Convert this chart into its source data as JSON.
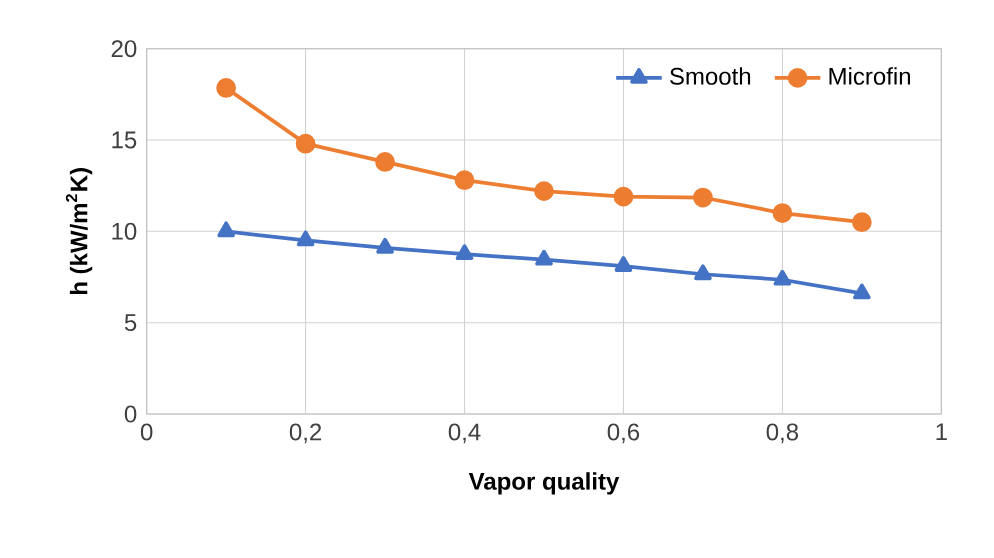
{
  "chart_data": {
    "type": "line",
    "xlabel": "Vapor quality",
    "ylabel": "h (kW/m$^{2}$K)",
    "x": [
      0.1,
      0.2,
      0.3,
      0.4,
      0.5,
      0.6,
      0.7,
      0.8,
      0.9
    ],
    "series": [
      {
        "name": "Smooth",
        "color": "#4472c4",
        "marker": "triangle",
        "values": [
          10.0,
          9.5,
          9.1,
          8.75,
          8.45,
          8.1,
          7.65,
          7.35,
          6.6
        ]
      },
      {
        "name": "Microfin",
        "color": "#ed7d31",
        "marker": "circle",
        "values": [
          17.85,
          14.8,
          13.8,
          12.8,
          12.2,
          11.9,
          11.85,
          11.0,
          10.5
        ]
      }
    ],
    "xlim": [
      0,
      1
    ],
    "ylim": [
      0,
      20
    ],
    "xticks": [
      0,
      {
        "value": 0.2,
        "label": "0,2"
      },
      {
        "value": 0.4,
        "label": "0,4"
      },
      {
        "value": 0.6,
        "label": "0,6"
      },
      {
        "value": 0.8,
        "label": "0,8"
      },
      1
    ],
    "yticks": [
      0,
      5,
      10,
      15,
      20
    ],
    "grid": true,
    "legend": "top right",
    "line_style": "solid"
  }
}
